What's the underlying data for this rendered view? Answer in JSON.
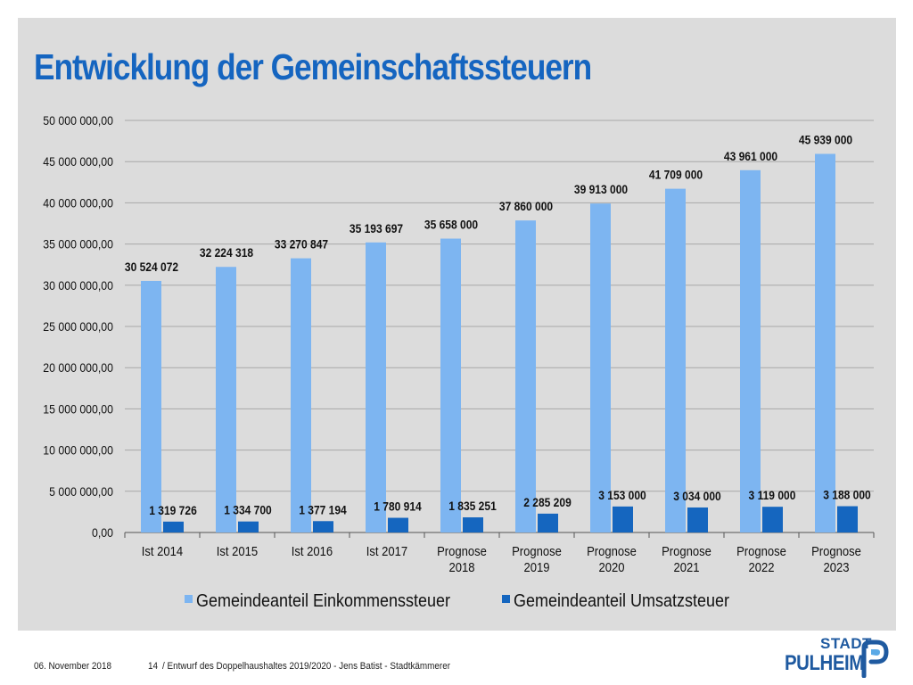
{
  "slide": {
    "title": "Entwicklung der Gemeinschaftssteuern",
    "footer_date": "06. November 2018",
    "footer_page": "14",
    "footer_text": "/ Entwurf des Doppelhaushaltes 2019/2020 - Jens Batist - Stadtkämmerer",
    "logo_line1": "STADT",
    "logo_line2": "PULHEIM"
  },
  "chart_data": {
    "type": "bar",
    "categories": [
      [
        "Ist 2014"
      ],
      [
        "Ist 2015"
      ],
      [
        "Ist 2016"
      ],
      [
        "Ist 2017"
      ],
      [
        "Prognose",
        "2018"
      ],
      [
        "Prognose",
        "2019"
      ],
      [
        "Prognose",
        "2020"
      ],
      [
        "Prognose",
        "2021"
      ],
      [
        "Prognose",
        "2022"
      ],
      [
        "Prognose",
        "2023"
      ]
    ],
    "series": [
      {
        "name": "Gemeindeanteil Einkommenssteuer",
        "color": "#7db5f1",
        "values": [
          30524072,
          32224318,
          33270847,
          35193697,
          35658000,
          37860000,
          39913000,
          41709000,
          43961000,
          45939000
        ],
        "labels": [
          "30 524 072",
          "32 224 318",
          "33 270 847",
          "35 193 697",
          "35 658 000",
          "37 860 000",
          "39 913 000",
          "41 709 000",
          "43 961 000",
          "45 939 000"
        ]
      },
      {
        "name": "Gemeindeanteil Umsatzsteuer",
        "color": "#1566bf",
        "values": [
          1319726,
          1334700,
          1377194,
          1780914,
          1835251,
          2285209,
          3153000,
          3034000,
          3119000,
          3188000
        ],
        "labels": [
          "1 319 726",
          "1 334 700",
          "1 377 194",
          "1 780 914",
          "1 835 251",
          "2 285 209",
          "3 153 000",
          "3 034 000",
          "3 119 000",
          "3 188 000"
        ]
      }
    ],
    "ylim": [
      0,
      50000000
    ],
    "yticks": [
      0,
      5000000,
      10000000,
      15000000,
      20000000,
      25000000,
      30000000,
      35000000,
      40000000,
      45000000,
      50000000
    ],
    "ytick_labels": [
      "0,00",
      "5 000 000,00",
      "10 000 000,00",
      "15 000 000,00",
      "20 000 000,00",
      "25 000 000,00",
      "30 000 000,00",
      "35 000 000,00",
      "40 000 000,00",
      "45 000 000,00",
      "50 000 000,00"
    ],
    "xlabel": "",
    "ylabel": "",
    "grid": true,
    "legend_position": "bottom"
  }
}
